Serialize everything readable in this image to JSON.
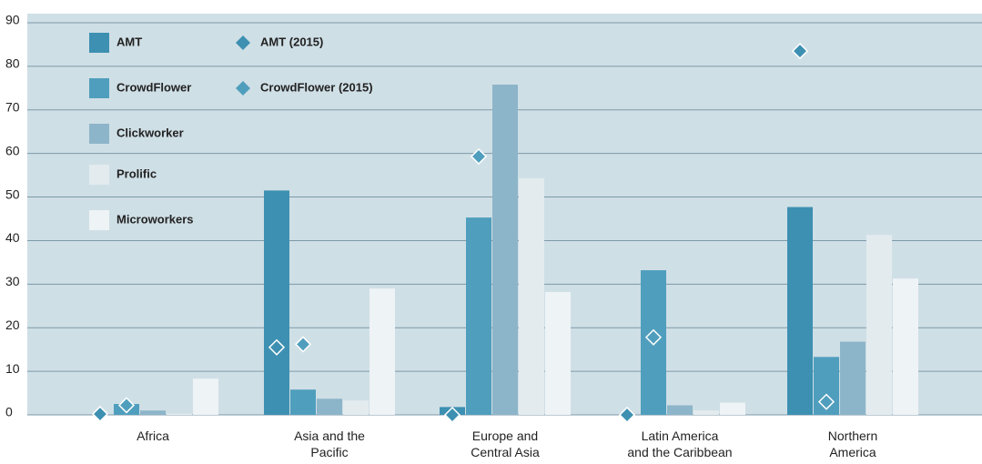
{
  "chart_data": {
    "type": "bar",
    "categories": [
      "Africa",
      "Asia and the\nPacific",
      "Europe and\nCentral Asia",
      "Latin America\nand the Caribbean",
      "Northern\nAmerica"
    ],
    "series": [
      {
        "name": "AMT",
        "color": "#3d90b1",
        "values": [
          0,
          51.5,
          1.8,
          0,
          47.7
        ]
      },
      {
        "name": "CrowdFlower",
        "color": "#509ebd",
        "values": [
          2.5,
          5.8,
          45.3,
          33.2,
          13.3
        ]
      },
      {
        "name": "Clickworker",
        "color": "#8db5c9",
        "values": [
          1,
          3.7,
          75.8,
          2.2,
          16.8
        ]
      },
      {
        "name": "Prolific",
        "color": "#e3ebef",
        "values": [
          0.3,
          3.3,
          54.3,
          1,
          41.3
        ]
      },
      {
        "name": "Microworkers",
        "color": "#eef3f6",
        "values": [
          8.3,
          29,
          28.2,
          2.8,
          31.3
        ]
      }
    ],
    "markers": [
      {
        "name": "AMT (2015)",
        "color": "#3d90b1",
        "type": "diamond",
        "values": [
          0.2,
          15.5,
          0,
          0,
          83.5
        ]
      },
      {
        "name": "CrowdFlower (2015)",
        "color": "#509ebd",
        "type": "diamond",
        "values": [
          2.2,
          16.2,
          59.3,
          17.8,
          3
        ]
      }
    ],
    "ylim": [
      0,
      90
    ],
    "yticks": [
      0,
      10,
      20,
      30,
      40,
      50,
      60,
      70,
      80,
      90
    ],
    "grid": true,
    "legend": "upper left"
  }
}
